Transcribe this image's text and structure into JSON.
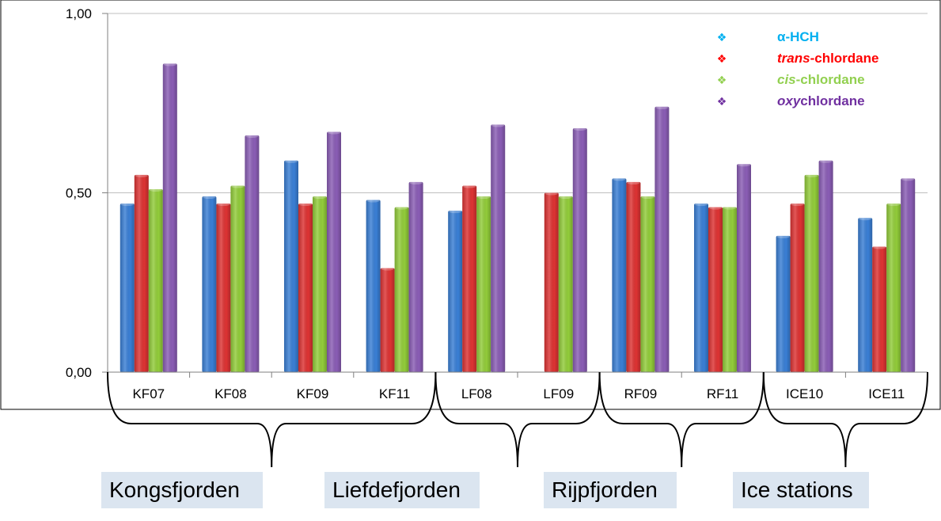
{
  "chart_data": {
    "type": "bar",
    "categories": [
      "KF07",
      "KF08",
      "KF09",
      "KF11",
      "LF08",
      "LF09",
      "RF09",
      "RF11",
      "ICE10",
      "ICE11"
    ],
    "series": [
      {
        "name": "α-HCH",
        "color": "#3a7fd5",
        "values": [
          0.47,
          0.49,
          0.59,
          0.48,
          0.45,
          null,
          0.54,
          0.47,
          0.38,
          0.43
        ]
      },
      {
        "name": "trans-chlordane",
        "color": "#dd3333",
        "values": [
          0.55,
          0.47,
          0.47,
          0.29,
          0.52,
          0.5,
          0.53,
          0.46,
          0.47,
          0.35
        ]
      },
      {
        "name": "cis-chlordane",
        "color": "#92cc3a",
        "values": [
          0.51,
          0.52,
          0.49,
          0.46,
          0.49,
          0.49,
          0.49,
          0.46,
          0.55,
          0.47
        ]
      },
      {
        "name": "oxychlordane",
        "color": "#8a5db5",
        "values": [
          0.86,
          0.66,
          0.67,
          0.53,
          0.69,
          0.68,
          0.74,
          0.58,
          0.59,
          0.54
        ]
      }
    ],
    "legend": [
      {
        "prefix": "α-HCH",
        "prefix_italic": false,
        "suffix": "",
        "color": "#00b0f0"
      },
      {
        "prefix": "trans",
        "prefix_italic": true,
        "suffix": "-chlordane",
        "color": "#ff0000"
      },
      {
        "prefix": "cis",
        "prefix_italic": true,
        "suffix": "-chlordane",
        "color": "#92d050"
      },
      {
        "prefix": "oxy",
        "prefix_italic": true,
        "suffix": "chlordane",
        "color": "#7030a0"
      }
    ],
    "legend_marker": "❖",
    "legend_placement": "top-right",
    "yticks": [
      0.0,
      0.5,
      1.0
    ],
    "ytick_labels": [
      "0,00",
      "0,50",
      "1,00"
    ],
    "ylim": [
      0,
      1
    ],
    "grid": true,
    "title": "",
    "xlabel": "",
    "ylabel": ""
  },
  "regions": [
    {
      "label": "Kongsfjorden",
      "categories": [
        "KF07",
        "KF08",
        "KF09",
        "KF11"
      ]
    },
    {
      "label": "Liefdefjorden",
      "categories": [
        "LF08",
        "LF09"
      ]
    },
    {
      "label": "Rijpfjorden",
      "categories": [
        "RF09",
        "RF11"
      ]
    },
    {
      "label": "Ice stations",
      "categories": [
        "ICE10",
        "ICE11"
      ]
    }
  ]
}
